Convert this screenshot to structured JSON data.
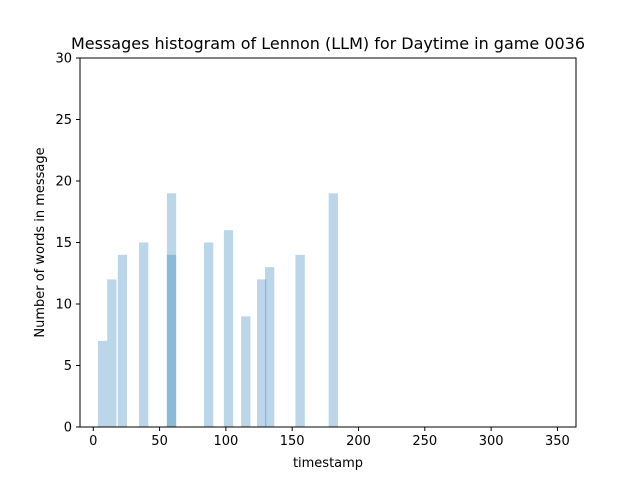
{
  "chart_data": {
    "type": "bar",
    "title": "Messages histogram of Lennon (LLM) for Daytime in game 0036",
    "xlabel": "timestamp",
    "ylabel": "Number of words in message",
    "xlim": [
      -10,
      364
    ],
    "ylim": [
      0,
      30
    ],
    "xticks": [
      0,
      50,
      100,
      150,
      200,
      250,
      300,
      350
    ],
    "yticks": [
      0,
      5,
      10,
      15,
      20,
      25,
      30
    ],
    "grid": false,
    "bar_color": "#1f77b4",
    "bar_opacity": 0.3,
    "bar_width": 7,
    "bars": [
      {
        "x": 7,
        "value": 7
      },
      {
        "x": 14,
        "value": 12
      },
      {
        "x": 22,
        "value": 14
      },
      {
        "x": 38,
        "value": 15
      },
      {
        "x": 59,
        "value": 19
      },
      {
        "x": 59,
        "value": 14
      },
      {
        "x": 87,
        "value": 15
      },
      {
        "x": 102,
        "value": 16
      },
      {
        "x": 115,
        "value": 9
      },
      {
        "x": 127,
        "value": 12
      },
      {
        "x": 133,
        "value": 13
      },
      {
        "x": 156,
        "value": 14
      },
      {
        "x": 181,
        "value": 19
      }
    ]
  }
}
